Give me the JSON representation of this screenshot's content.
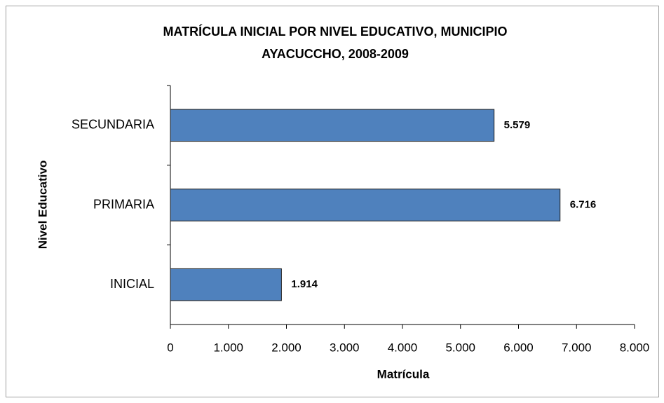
{
  "chart_data": {
    "type": "hbar",
    "title": [
      "MATRÍCULA INICIAL POR NIVEL  EDUCATIVO, MUNICIPIO",
      "AYACUCCHO, 2008-2009"
    ],
    "xlabel": "Matrícula",
    "ylabel": "Nivel Educativo",
    "categories": [
      "SECUNDARIA",
      "PRIMARIA",
      "INICIAL"
    ],
    "values": [
      5579,
      6716,
      1914
    ],
    "value_labels": [
      "5.579",
      "6.716",
      "1.914"
    ],
    "color": "#4f81bd",
    "xlim": [
      0,
      8000
    ],
    "xticks": [
      0,
      {
        "value": 1000,
        "label": "1.000"
      },
      {
        "value": 2000,
        "label": "2.000"
      },
      {
        "value": 3000,
        "label": "3.000"
      },
      {
        "value": 4000,
        "label": "4.000"
      },
      {
        "value": 5000,
        "label": "5.000"
      },
      {
        "value": 6000,
        "label": "6.000"
      },
      {
        "value": 7000,
        "label": "7.000"
      },
      {
        "value": 8000,
        "label": "8.000"
      }
    ],
    "grid": false
  }
}
